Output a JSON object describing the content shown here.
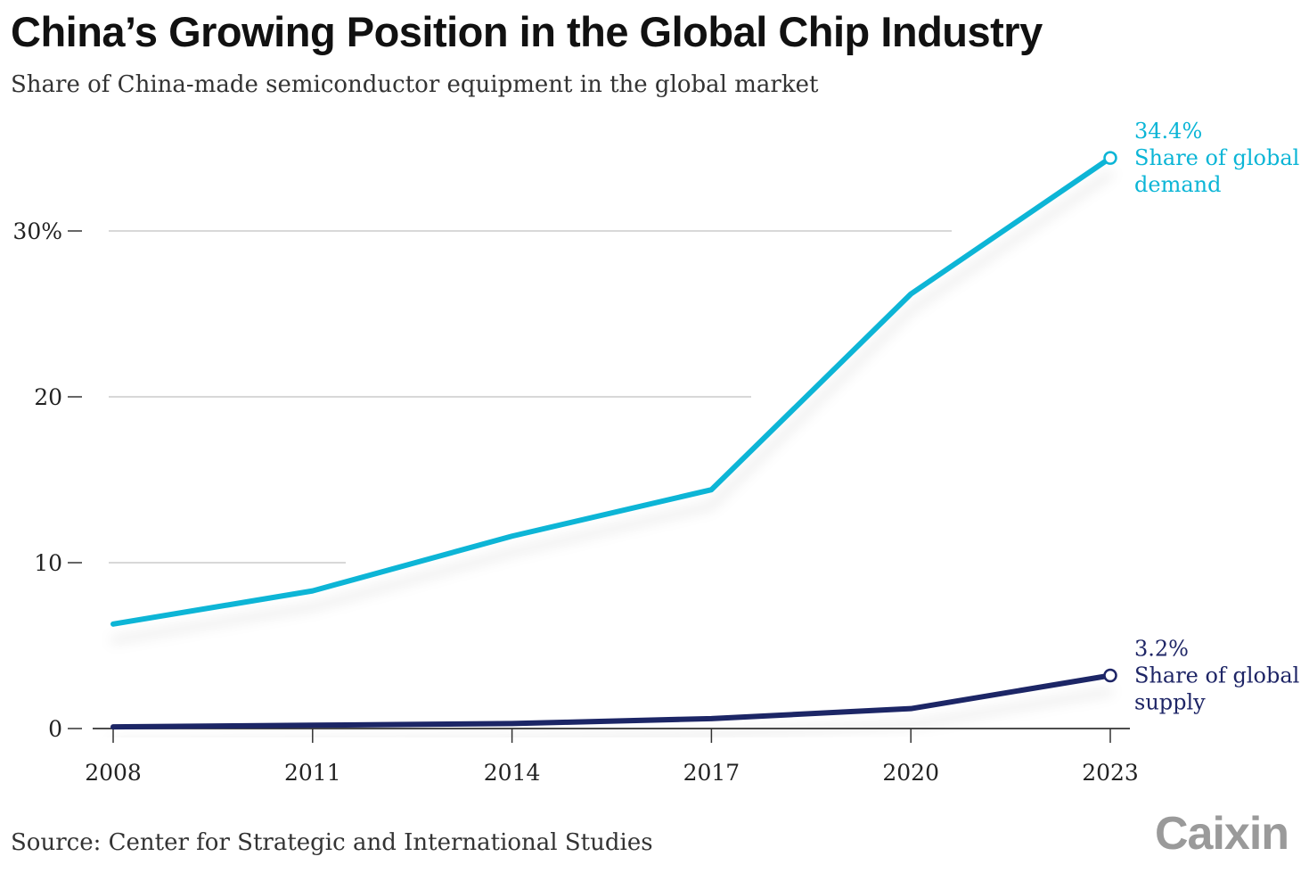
{
  "chart_data": {
    "type": "line",
    "title": "China’s Growing Position in the Global Chip Industry",
    "subtitle": "Share of China-made semiconductor equipment in the global market",
    "source": "Source: Center for Strategic and International Studies",
    "brand": "Caixin",
    "x": [
      2008,
      2011,
      2014,
      2017,
      2020,
      2023
    ],
    "x_tick_labels": [
      "2008",
      "2011",
      "2014",
      "2017",
      "2020",
      "2023"
    ],
    "xlim": [
      2008,
      2023
    ],
    "ylim": [
      0,
      35
    ],
    "y_ticks": [
      0,
      10,
      20,
      30
    ],
    "y_tick_labels": [
      "0",
      "10",
      "20",
      "30%"
    ],
    "grid": true,
    "series": [
      {
        "name": "Share of global demand",
        "label_lines": [
          "Share of global",
          "demand"
        ],
        "end_label": "34.4%",
        "color": "#0bb5d6",
        "values": [
          6.3,
          8.3,
          11.6,
          14.4,
          26.2,
          34.4
        ]
      },
      {
        "name": "Share of global supply",
        "label_lines": [
          "Share of global",
          "supply"
        ],
        "end_label": "3.2%",
        "color": "#1e2566",
        "values": [
          0.1,
          0.2,
          0.3,
          0.6,
          1.2,
          3.2
        ]
      }
    ]
  }
}
